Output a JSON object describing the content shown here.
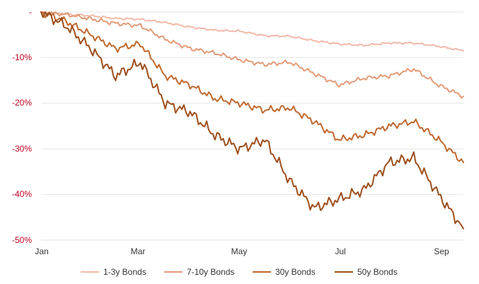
{
  "chart_data": {
    "type": "line",
    "x_ticks": [
      "Jan",
      "Mar",
      "May",
      "Jul",
      "Sep"
    ],
    "y_ticks": [
      "-",
      "-10%",
      "-20%",
      "-30%",
      "-40%",
      "-50%"
    ],
    "ylim": [
      -50,
      0
    ],
    "grid": true,
    "legend_position": "bottom",
    "x_dates": [
      "Jan 1",
      "Jan 15",
      "Feb 1",
      "Feb 15",
      "Mar 1",
      "Mar 15",
      "Apr 1",
      "Apr 15",
      "May 1",
      "May 15",
      "Jun 1",
      "Jun 15",
      "Jul 1",
      "Jul 15",
      "Aug 1",
      "Aug 15",
      "Sep 1",
      "Sep 15"
    ],
    "series": [
      {
        "name": "1-3y Bonds",
        "color": "#f2b9a7",
        "values": [
          0,
          -0.5,
          -0.8,
          -1.4,
          -1.6,
          -2.3,
          -3.3,
          -4.0,
          -4.2,
          -5.2,
          -5.3,
          -6.3,
          -7.0,
          -7.3,
          -6.8,
          -6.8,
          -7.5,
          -8.5
        ]
      },
      {
        "name": "7-10y Bonds",
        "color": "#e39b79",
        "values": [
          0,
          -0.5,
          -1.5,
          -2.5,
          -3.0,
          -6.0,
          -8.0,
          -9.0,
          -10.5,
          -11.5,
          -11.0,
          -13.5,
          -16.0,
          -14.5,
          -14.0,
          -12.5,
          -16.0,
          -18.5
        ]
      },
      {
        "name": "30y Bonds",
        "color": "#c0682e",
        "values": [
          0,
          -2.0,
          -5.0,
          -8.0,
          -7.0,
          -14.0,
          -16.0,
          -19.0,
          -20.0,
          -21.5,
          -21.0,
          -24.0,
          -28.0,
          -27.0,
          -25.0,
          -24.0,
          -28.0,
          -33.0
        ]
      },
      {
        "name": "50y Bonds",
        "color": "#9e4e1b",
        "values": [
          0,
          -3.0,
          -8.0,
          -14.0,
          -11.0,
          -20.0,
          -22.0,
          -27.0,
          -30.0,
          -28.0,
          -37.0,
          -43.0,
          -41.0,
          -39.0,
          -33.0,
          -32.0,
          -40.0,
          -47.5
        ]
      }
    ]
  }
}
